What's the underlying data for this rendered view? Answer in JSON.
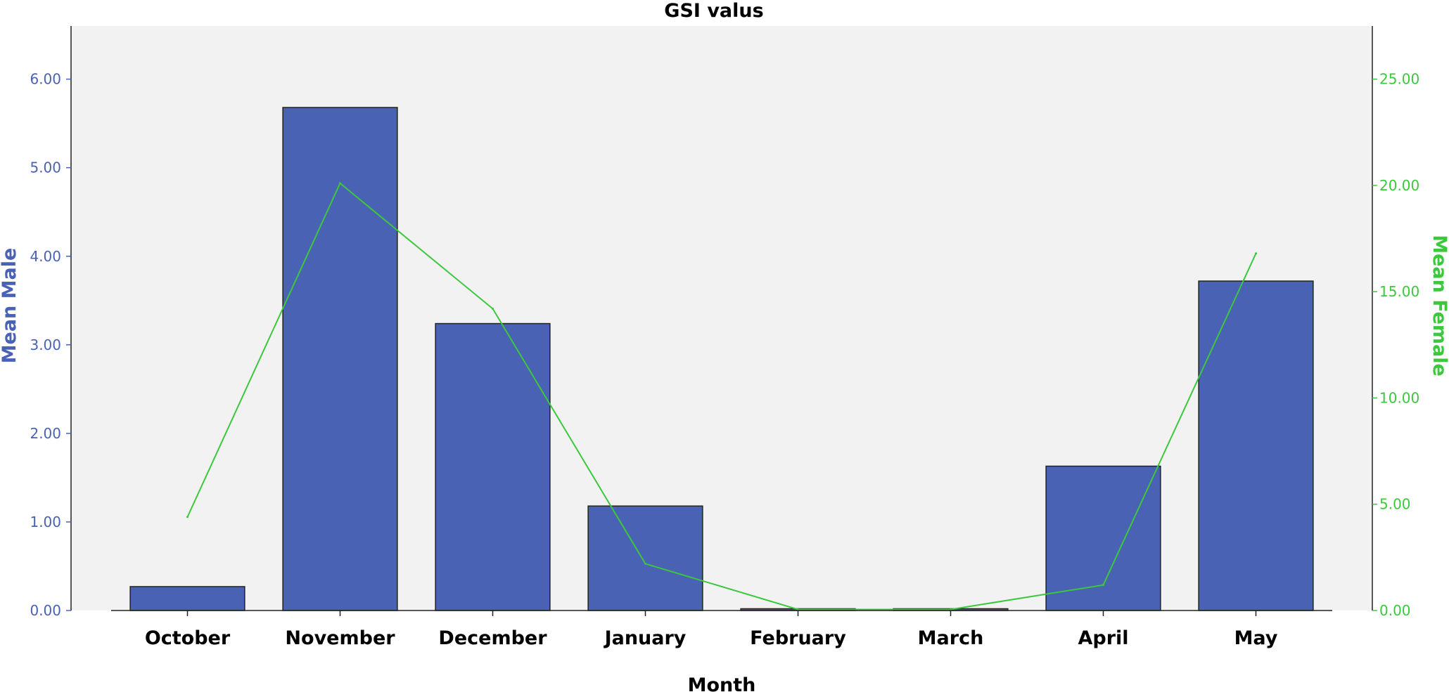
{
  "chart_data": {
    "type": "bar",
    "title": "GSI valus",
    "xlabel": "Month",
    "ylabel_left": "Mean Male",
    "ylabel_right": "Mean Female",
    "categories": [
      "October",
      "November",
      "December",
      "January",
      "February",
      "March",
      "April",
      "May"
    ],
    "series": [
      {
        "name": "Mean Male",
        "type": "bar",
        "axis": "left",
        "color": "#4a62b4",
        "values": [
          0.27,
          5.68,
          3.24,
          1.18,
          0.02,
          0.02,
          1.63,
          3.72
        ]
      },
      {
        "name": "Mean Female",
        "type": "line",
        "axis": "right",
        "color": "#3cc83c",
        "values": [
          4.4,
          20.1,
          14.2,
          2.2,
          0.05,
          0.05,
          1.2,
          16.8
        ]
      }
    ],
    "ylim_left": [
      0,
      6.6
    ],
    "yticks_left": [
      "0.00",
      "1.00",
      "2.00",
      "3.00",
      "4.00",
      "5.00",
      "6.00"
    ],
    "ylim_right": [
      0,
      27.5
    ],
    "yticks_right": [
      "0.00",
      "5.00",
      "10.00",
      "15.00",
      "20.00",
      "25.00"
    ],
    "grid": false,
    "plot_background": "#f2f2f2",
    "bar_edge_color": "#222222"
  }
}
